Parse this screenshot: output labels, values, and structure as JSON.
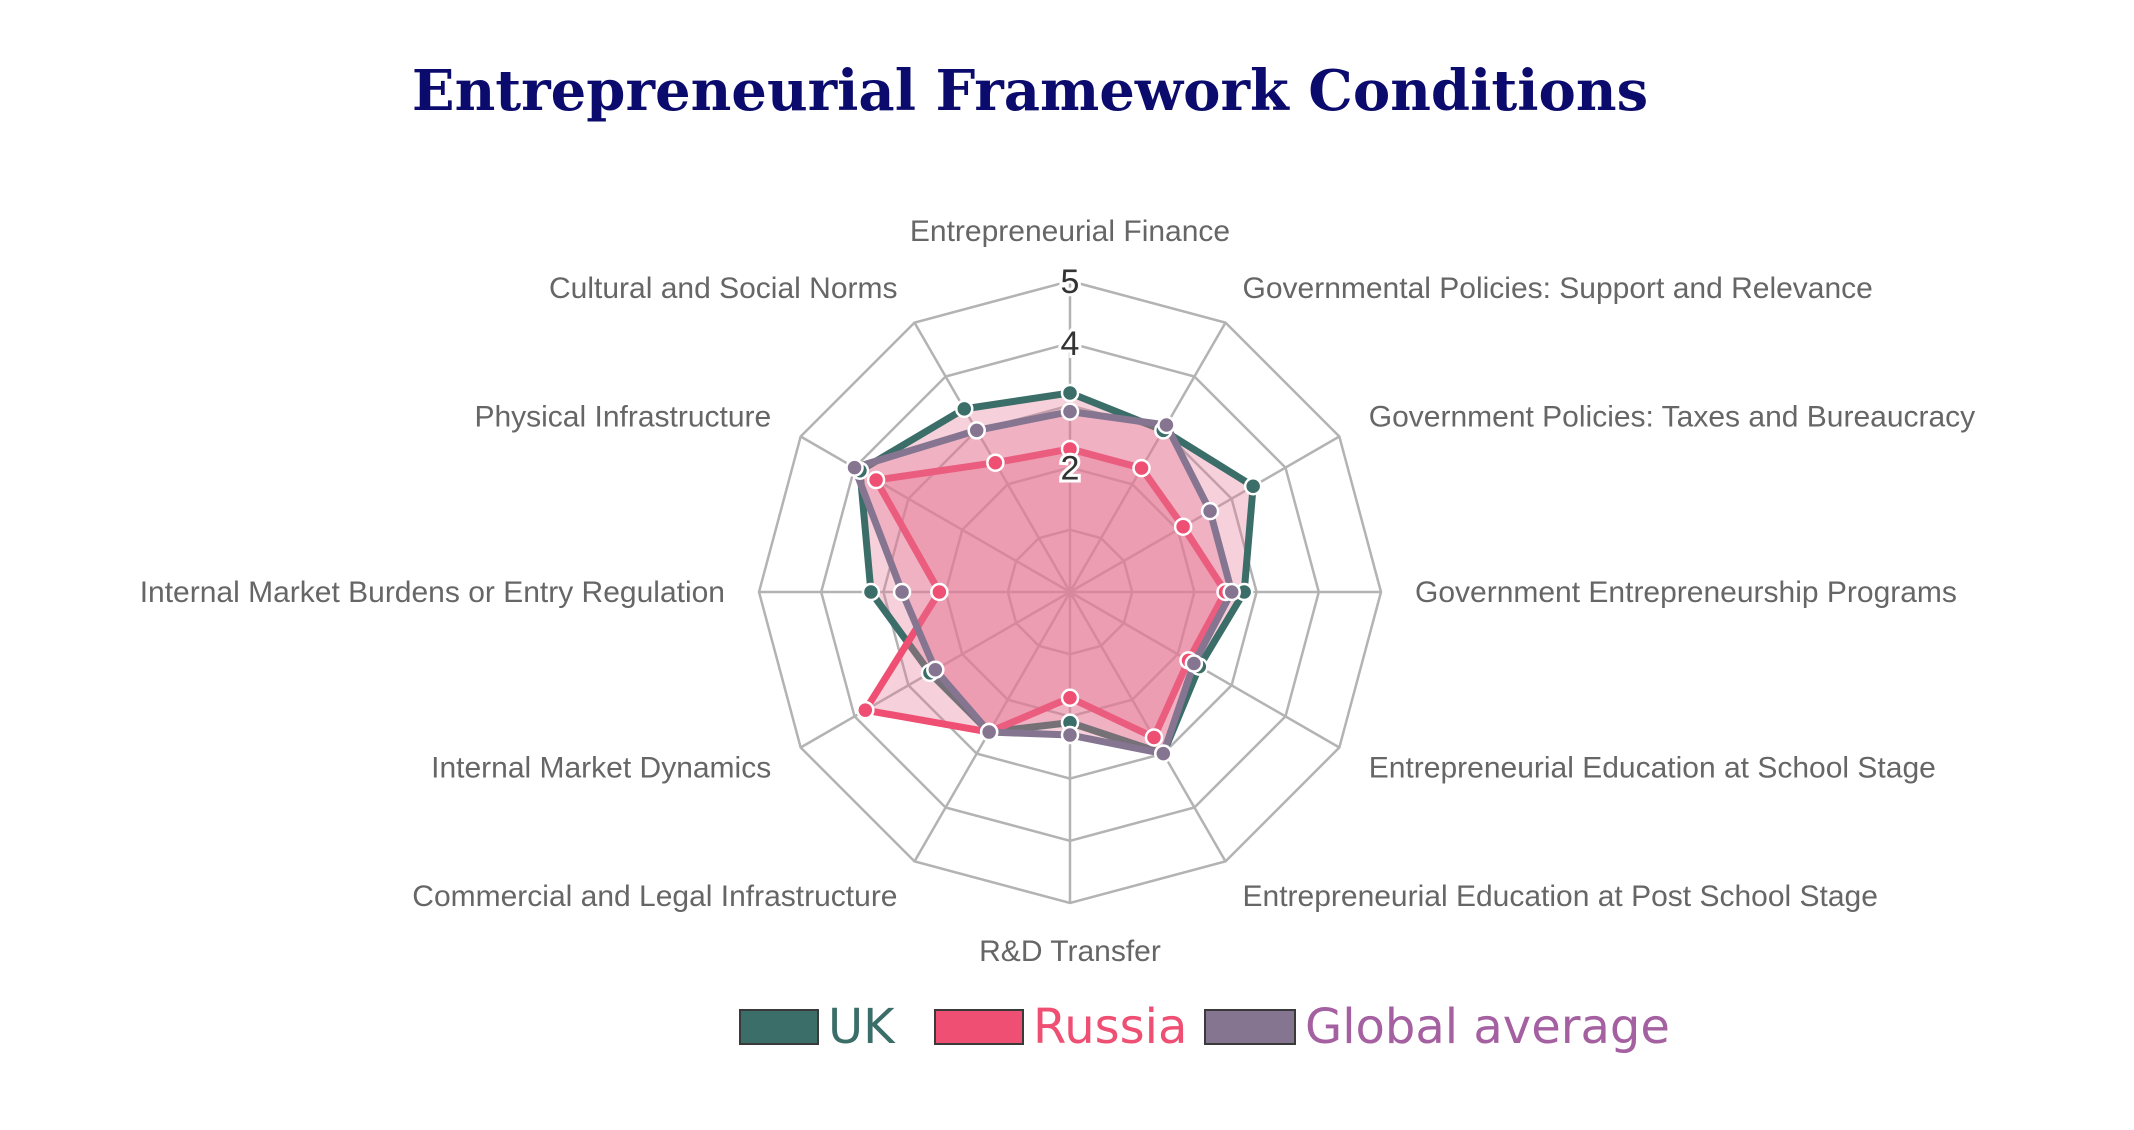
{
  "chart_data": {
    "type": "radar",
    "title": "Entrepreneurial Framework Conditions",
    "categories": [
      "Entrepreneurial Finance",
      "Governmental Policies: Support and Relevance",
      "Government Policies: Taxes and Bureaucracy",
      "Government Entrepreneurship Programs",
      "Entrepreneurial Education at School Stage",
      "Entrepreneurial Education at Post School Stage",
      "R&D Transfer",
      "Commercial and Legal Infrastructure",
      "Internal Market Dynamics",
      "Internal Market Burdens or Entry Regulation",
      "Physical Infrastructure",
      "Cultural and Social Norms"
    ],
    "rlim": [
      0,
      5
    ],
    "ticks": [
      "2",
      "4",
      "5"
    ],
    "tick_values": [
      2,
      4,
      5
    ],
    "grid_levels": [
      1,
      2,
      3,
      4,
      5
    ],
    "legend_position": "bottom",
    "series": [
      {
        "name": "UK",
        "color": "#3b6e68",
        "values": [
          3.2,
          3.0,
          3.4,
          2.8,
          2.4,
          3.0,
          2.1,
          2.6,
          2.6,
          3.2,
          3.9,
          3.4
        ]
      },
      {
        "name": "Russia",
        "color": "#ef4f73",
        "values": [
          2.3,
          2.3,
          2.1,
          2.5,
          2.2,
          2.7,
          1.7,
          2.6,
          3.8,
          2.1,
          3.6,
          2.4
        ]
      },
      {
        "name": "Global average",
        "color": "#857591",
        "values": [
          2.9,
          3.1,
          2.6,
          2.6,
          2.3,
          3.0,
          2.3,
          2.6,
          2.5,
          2.7,
          4.0,
          3.0
        ]
      }
    ]
  },
  "legend_text_colors": {
    "UK": "#3b6e68",
    "Russia": "#ef4f73",
    "Global average": "#a460a0"
  },
  "colors": {
    "title": "#0b0b6e",
    "grid": "#b3b3b3",
    "label": "#666666",
    "tick": "#333333",
    "fill": "rgba(230,120,150,0.35)"
  }
}
